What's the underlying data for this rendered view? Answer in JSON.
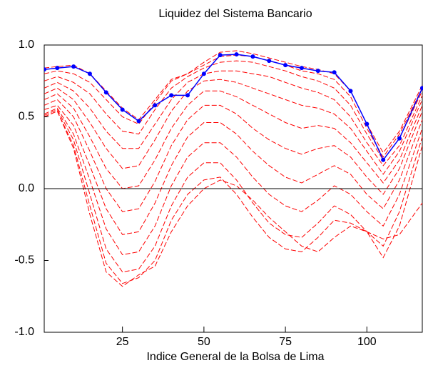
{
  "chart_data": {
    "type": "line",
    "title": "Liquidez del Sistema Bancario",
    "x_label": "Indice General de la Bolsa de Lima",
    "x": [
      1,
      5,
      10,
      15,
      20,
      25,
      30,
      35,
      40,
      45,
      50,
      55,
      60,
      65,
      70,
      75,
      80,
      85,
      90,
      95,
      100,
      105,
      110,
      117
    ],
    "xlim": [
      1,
      117
    ],
    "xticks": [
      25,
      50,
      75,
      100
    ],
    "ylim": [
      -1,
      1
    ],
    "yticks": [
      {
        "value": 1,
        "label": "1.0"
      },
      {
        "value": 0.5,
        "label": "0.5"
      },
      {
        "value": 0,
        "label": "0.0"
      },
      {
        "value": -0.5,
        "label": "-0.5"
      },
      {
        "value": -1,
        "label": "-1.0"
      }
    ],
    "zero_line": true,
    "series": [
      {
        "color": "#ff0000",
        "style": "dashed",
        "values": [
          0.84,
          0.85,
          0.86,
          0.8,
          0.68,
          0.56,
          0.48,
          0.62,
          0.76,
          0.8,
          0.88,
          0.95,
          0.96,
          0.94,
          0.91,
          0.88,
          0.85,
          0.83,
          0.8,
          0.68,
          0.45,
          0.25,
          0.4,
          0.72
        ]
      },
      {
        "color": "#ff0000",
        "style": "dashed",
        "values": [
          0.8,
          0.82,
          0.8,
          0.74,
          0.62,
          0.5,
          0.45,
          0.6,
          0.75,
          0.8,
          0.86,
          0.92,
          0.93,
          0.92,
          0.89,
          0.86,
          0.82,
          0.8,
          0.76,
          0.64,
          0.42,
          0.22,
          0.38,
          0.7
        ]
      },
      {
        "color": "#ff0000",
        "style": "dashed",
        "values": [
          0.75,
          0.78,
          0.74,
          0.66,
          0.52,
          0.4,
          0.38,
          0.55,
          0.7,
          0.78,
          0.84,
          0.88,
          0.89,
          0.88,
          0.85,
          0.82,
          0.78,
          0.75,
          0.7,
          0.58,
          0.38,
          0.2,
          0.35,
          0.68
        ]
      },
      {
        "color": "#ff0000",
        "style": "dashed",
        "values": [
          0.7,
          0.74,
          0.68,
          0.56,
          0.4,
          0.28,
          0.28,
          0.45,
          0.62,
          0.74,
          0.8,
          0.82,
          0.82,
          0.8,
          0.78,
          0.74,
          0.7,
          0.67,
          0.62,
          0.5,
          0.32,
          0.16,
          0.3,
          0.65
        ]
      },
      {
        "color": "#ff0000",
        "style": "dashed",
        "values": [
          0.66,
          0.7,
          0.62,
          0.46,
          0.28,
          0.14,
          0.16,
          0.34,
          0.54,
          0.68,
          0.75,
          0.76,
          0.74,
          0.7,
          0.66,
          0.62,
          0.58,
          0.56,
          0.52,
          0.42,
          0.26,
          0.1,
          0.26,
          0.62
        ]
      },
      {
        "color": "#ff0000",
        "style": "dashed",
        "values": [
          0.62,
          0.66,
          0.56,
          0.36,
          0.14,
          0.0,
          0.02,
          0.2,
          0.42,
          0.58,
          0.68,
          0.68,
          0.64,
          0.58,
          0.52,
          0.46,
          0.42,
          0.44,
          0.42,
          0.32,
          0.18,
          0.04,
          0.2,
          0.58
        ]
      },
      {
        "color": "#ff0000",
        "style": "dashed",
        "values": [
          0.58,
          0.62,
          0.5,
          0.26,
          0.0,
          -0.16,
          -0.14,
          0.05,
          0.3,
          0.48,
          0.58,
          0.58,
          0.52,
          0.42,
          0.34,
          0.28,
          0.24,
          0.28,
          0.3,
          0.22,
          0.08,
          -0.04,
          0.14,
          0.54
        ]
      },
      {
        "color": "#ff0000",
        "style": "dashed",
        "values": [
          0.55,
          0.58,
          0.44,
          0.16,
          -0.14,
          -0.32,
          -0.3,
          -0.1,
          0.16,
          0.36,
          0.46,
          0.46,
          0.38,
          0.26,
          0.16,
          0.08,
          0.04,
          0.1,
          0.16,
          0.1,
          -0.04,
          -0.14,
          0.06,
          0.48
        ]
      },
      {
        "color": "#ff0000",
        "style": "dashed",
        "values": [
          0.52,
          0.56,
          0.38,
          0.06,
          -0.28,
          -0.46,
          -0.44,
          -0.26,
          0.02,
          0.22,
          0.32,
          0.32,
          0.22,
          0.08,
          -0.04,
          -0.12,
          -0.16,
          -0.08,
          0.02,
          -0.04,
          -0.16,
          -0.26,
          -0.04,
          0.42
        ]
      },
      {
        "color": "#ff0000",
        "style": "dashed",
        "values": [
          0.51,
          0.55,
          0.34,
          -0.04,
          -0.42,
          -0.58,
          -0.56,
          -0.4,
          -0.12,
          0.08,
          0.18,
          0.18,
          0.06,
          -0.1,
          -0.24,
          -0.32,
          -0.34,
          -0.24,
          -0.12,
          -0.18,
          -0.3,
          -0.4,
          -0.16,
          0.36
        ]
      },
      {
        "color": "#ff0000",
        "style": "dashed",
        "values": [
          0.5,
          0.54,
          0.3,
          -0.12,
          -0.52,
          -0.66,
          -0.62,
          -0.5,
          -0.22,
          -0.04,
          0.06,
          0.08,
          -0.04,
          -0.2,
          -0.34,
          -0.42,
          -0.44,
          -0.34,
          -0.22,
          -0.24,
          -0.3,
          -0.48,
          -0.26,
          0.3
        ]
      },
      {
        "color": "#ff0000",
        "style": "dashed",
        "values": [
          0.5,
          0.54,
          0.28,
          -0.18,
          -0.58,
          -0.68,
          -0.6,
          -0.54,
          -0.3,
          -0.12,
          0.0,
          0.06,
          0.02,
          -0.08,
          -0.2,
          -0.3,
          -0.4,
          -0.44,
          -0.34,
          -0.26,
          -0.3,
          -0.35,
          -0.32,
          -0.1
        ]
      },
      {
        "color": "#0000ff",
        "style": "dotted-markers",
        "values": [
          0.83,
          0.84,
          0.85,
          0.8,
          0.67,
          0.55,
          0.47,
          0.58,
          0.65,
          0.65,
          0.8,
          0.93,
          0.935,
          0.92,
          0.89,
          0.86,
          0.84,
          0.82,
          0.81,
          0.68,
          0.45,
          0.2,
          0.35,
          0.7
        ]
      }
    ]
  }
}
